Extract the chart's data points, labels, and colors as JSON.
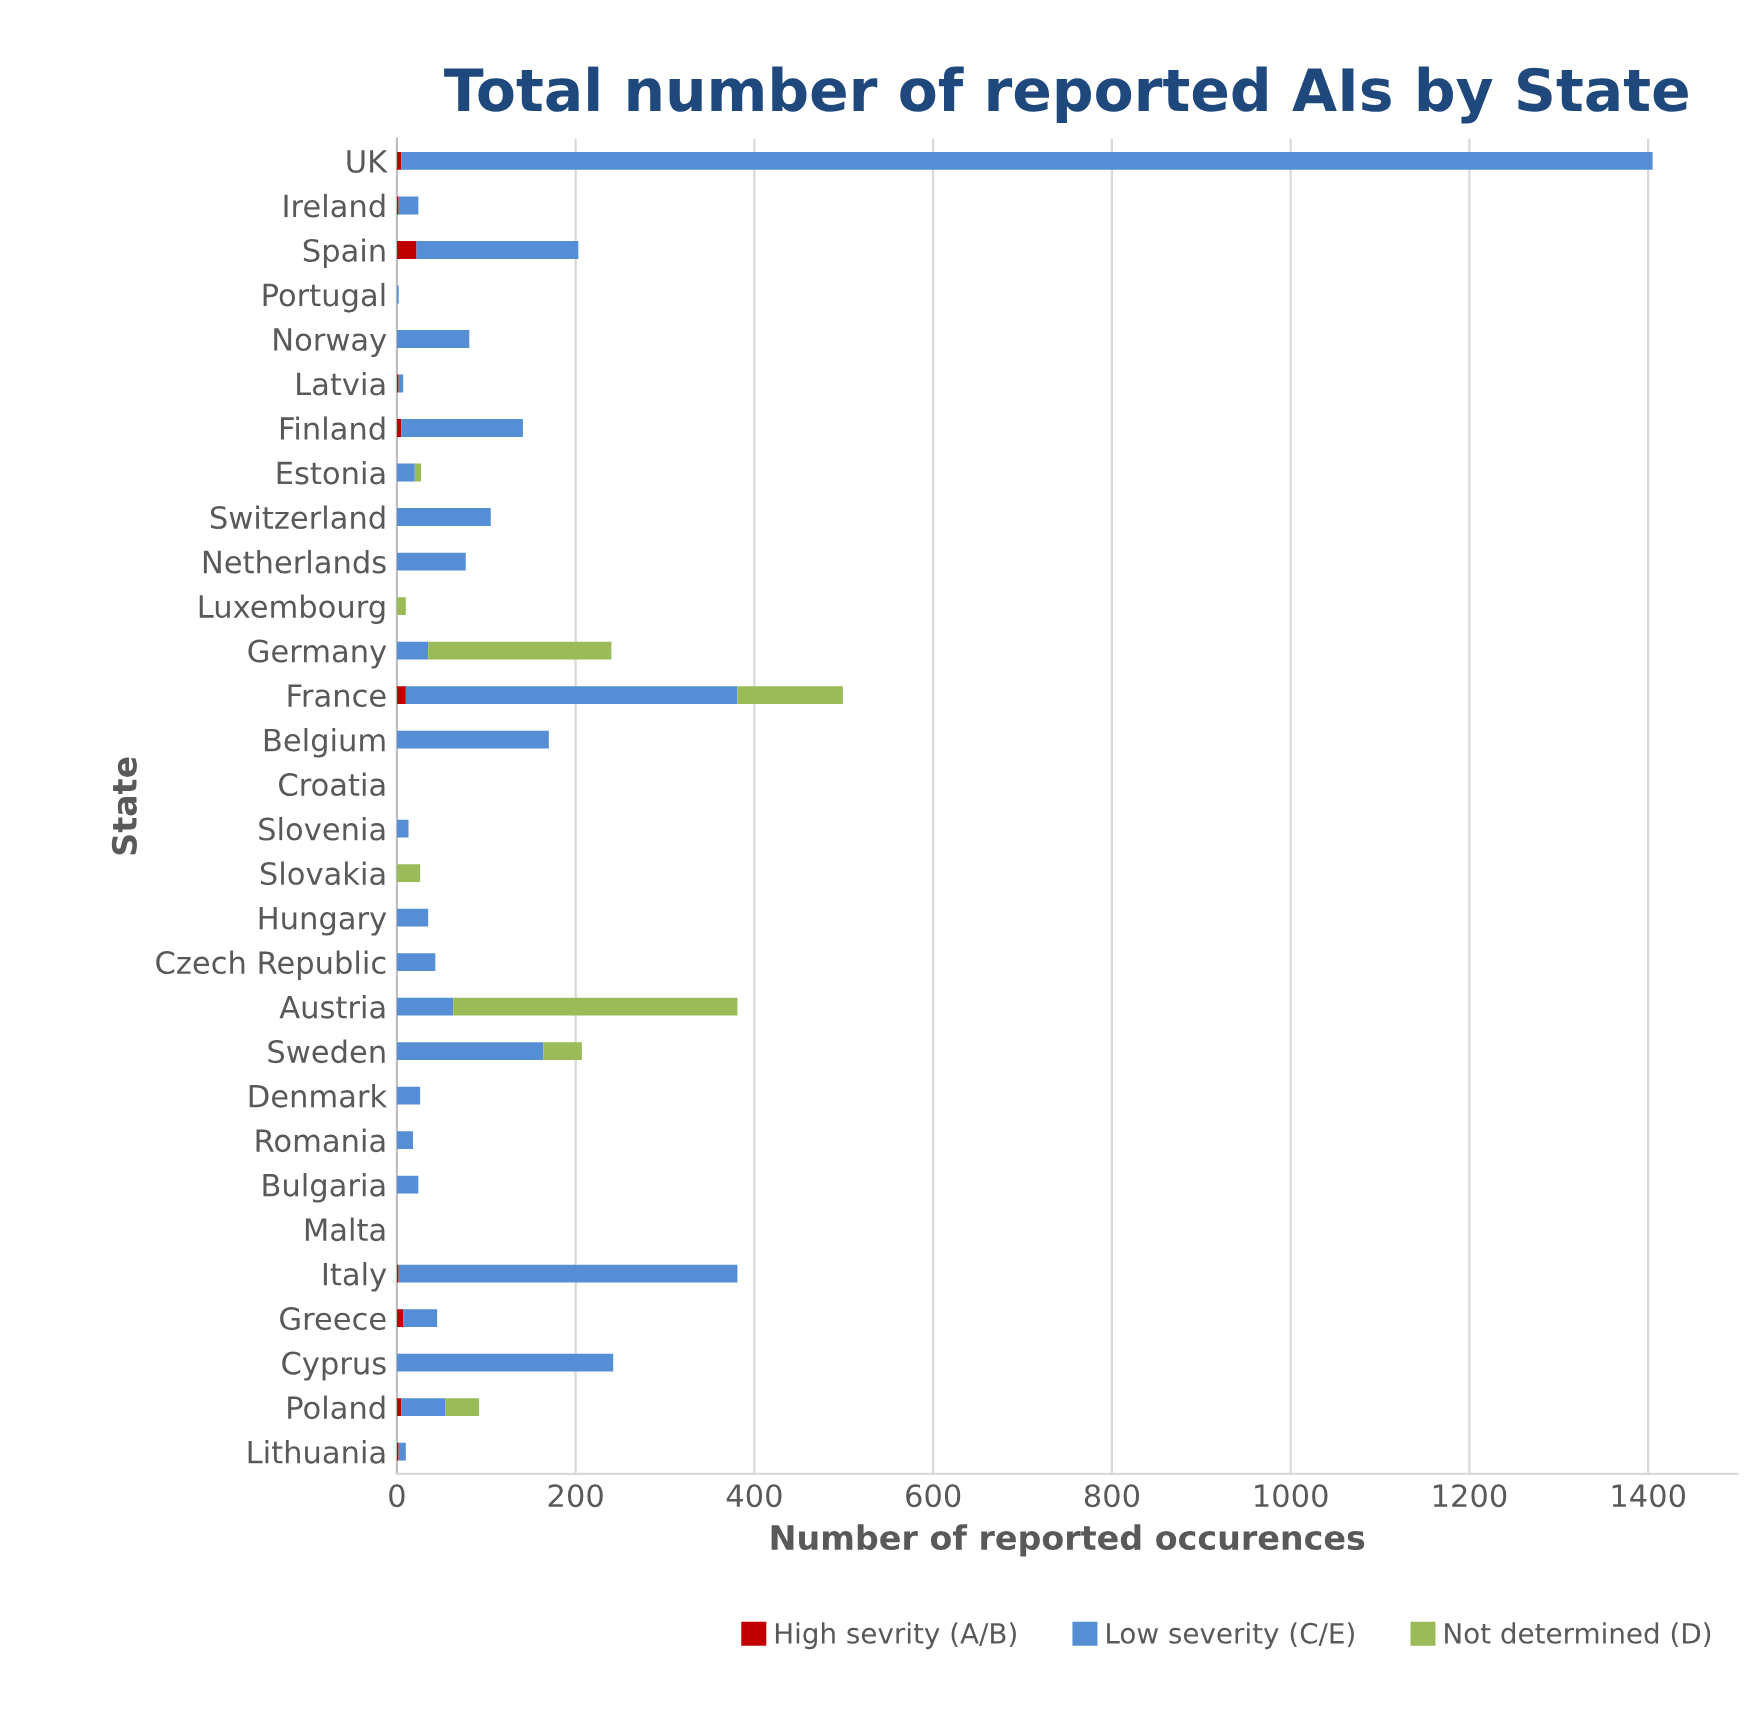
{
  "chart_data": {
    "type": "bar",
    "orientation": "horizontal",
    "stacked": true,
    "title": "Total number of reported AIs by State",
    "xlabel": "Number of reported occurences",
    "ylabel": "State",
    "categories": [
      "UK",
      "Ireland",
      "Spain",
      "Portugal",
      "Norway",
      "Latvia",
      "Finland",
      "Estonia",
      "Switzerland",
      "Netherlands",
      "Luxembourg",
      "Germany",
      "France",
      "Belgium",
      "Croatia",
      "Slovenia",
      "Slovakia",
      "Hungary",
      "Czech Republic",
      "Austria",
      "Sweden",
      "Denmark",
      "Romania",
      "Bulgaria",
      "Malta",
      "Italy",
      "Greece",
      "Cyprus",
      "Poland",
      "Lithuania"
    ],
    "series": [
      {
        "name": "High sevrity (A/B)",
        "color": "#c00000",
        "values": [
          5,
          2,
          22,
          0,
          0,
          2,
          5,
          0,
          0,
          0,
          0,
          0,
          10,
          0,
          0,
          0,
          0,
          0,
          0,
          0,
          0,
          0,
          0,
          0,
          0,
          2,
          7,
          0,
          5,
          2
        ]
      },
      {
        "name": "Low severity (C/E)",
        "color": "#558ed5",
        "values": [
          1400,
          22,
          181,
          2,
          81,
          5,
          136,
          20,
          105,
          77,
          0,
          35,
          371,
          170,
          0,
          13,
          0,
          35,
          43,
          63,
          164,
          26,
          18,
          24,
          0,
          379,
          38,
          242,
          49,
          8
        ]
      },
      {
        "name": "Not determined (D)",
        "color": "#9bbb59",
        "values": [
          0,
          0,
          0,
          0,
          0,
          0,
          0,
          7,
          0,
          0,
          10,
          205,
          118,
          0,
          0,
          0,
          26,
          0,
          0,
          318,
          43,
          0,
          0,
          0,
          0,
          0,
          0,
          0,
          38,
          0
        ]
      }
    ],
    "xlim": [
      0,
      1500
    ],
    "xticks": [
      0,
      200,
      400,
      600,
      800,
      1000,
      1200,
      1400
    ],
    "grid": "x",
    "legend": "bottom"
  }
}
